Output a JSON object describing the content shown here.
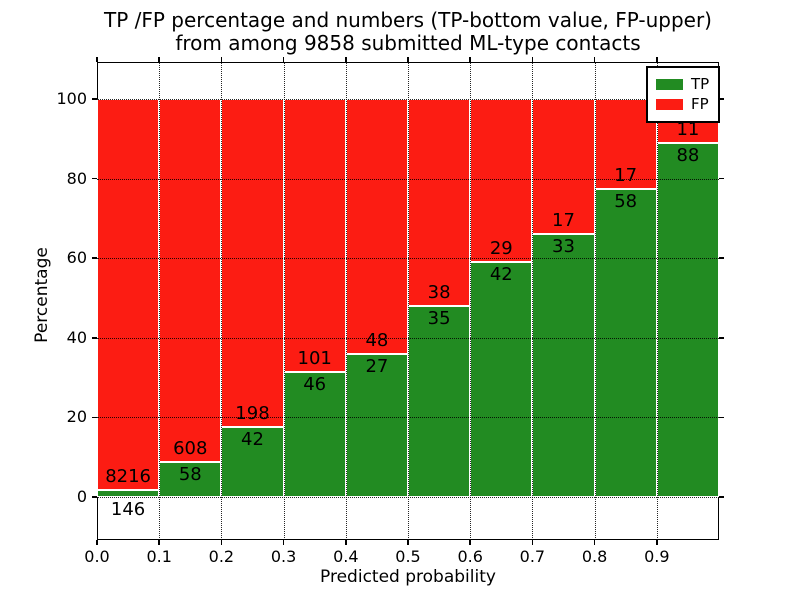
{
  "figure": {
    "title_line1": "TP /FP percentage and numbers (TP-bottom value, FP-upper)",
    "title_line2": "from among 9858 submitted ML-type contacts"
  },
  "chart_data": {
    "type": "bar",
    "subtype": "stacked-percentage",
    "title": "TP /FP percentage and numbers (TP-bottom value, FP-upper) from among 9858 submitted ML-type contacts",
    "xlabel": "Predicted probability",
    "ylabel": "Percentage",
    "categories": [
      "0.0-0.1",
      "0.1-0.2",
      "0.2-0.3",
      "0.3-0.4",
      "0.4-0.5",
      "0.5-0.6",
      "0.6-0.7",
      "0.7-0.8",
      "0.8-0.9",
      "0.9-1.0"
    ],
    "bin_left_edges": [
      0.0,
      0.1,
      0.2,
      0.3,
      0.4,
      0.5,
      0.6,
      0.7,
      0.8,
      0.9
    ],
    "bin_width": 0.1,
    "series": [
      {
        "name": "TP",
        "color": "#228b22",
        "counts": [
          146,
          58,
          42,
          46,
          27,
          35,
          42,
          33,
          58,
          88
        ]
      },
      {
        "name": "FP",
        "color": "#fc1c13",
        "counts": [
          8216,
          608,
          198,
          101,
          48,
          38,
          29,
          17,
          17,
          11
        ]
      }
    ],
    "tp_percent_of_bin": [
      1.75,
      8.71,
      17.5,
      31.29,
      36.0,
      47.95,
      59.15,
      66.0,
      77.33,
      88.89
    ],
    "total_contacts": 9858,
    "x_tick_labels": [
      "0.0",
      "0.1",
      "0.2",
      "0.3",
      "0.4",
      "0.5",
      "0.6",
      "0.7",
      "0.8",
      "0.9"
    ],
    "y_tick_labels": [
      "0",
      "20",
      "40",
      "60",
      "80",
      "100"
    ],
    "y_tick_values": [
      0,
      20,
      40,
      60,
      80,
      100
    ],
    "xlim": [
      0.0,
      1.0
    ],
    "ylim": [
      -10.8,
      109.3
    ],
    "grid": "dotted black, both axes, drawn above bars",
    "bar_edge_color": "#ffffff",
    "legend": {
      "position": "upper right",
      "entries": [
        {
          "label": "TP",
          "color": "#228b22"
        },
        {
          "label": "FP",
          "color": "#fc1c13"
        }
      ]
    }
  }
}
